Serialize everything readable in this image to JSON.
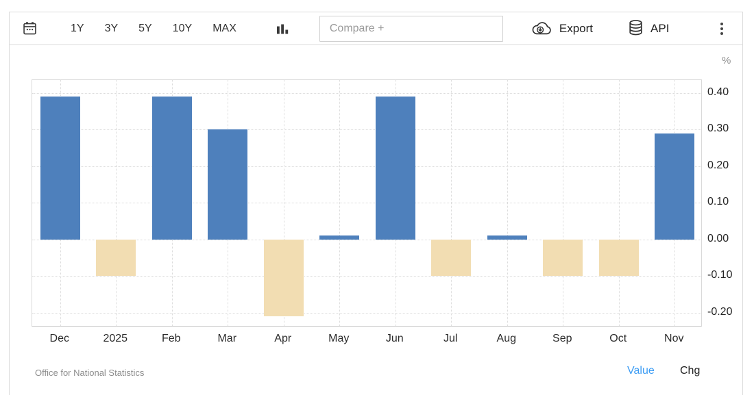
{
  "toolbar": {
    "periods": [
      "1Y",
      "3Y",
      "5Y",
      "10Y",
      "MAX"
    ],
    "compare_placeholder": "Compare +",
    "export_label": "Export",
    "api_label": "API",
    "icons": {
      "left": "calendar-icon",
      "chart_type": "bar-chart-icon",
      "export": "cloud-download-icon",
      "api": "database-icon",
      "more": "kebab-menu-icon"
    }
  },
  "chart_data": {
    "type": "bar",
    "unit": "%",
    "categories": [
      "Dec",
      "2025",
      "Feb",
      "Mar",
      "Apr",
      "May",
      "Jun",
      "Jul",
      "Aug",
      "Sep",
      "Oct",
      "Nov"
    ],
    "values": [
      0.39,
      -0.1,
      0.39,
      0.3,
      -0.21,
      0.01,
      0.39,
      -0.1,
      0.01,
      -0.1,
      -0.1,
      0.29
    ],
    "positive_color": "#4e80bc",
    "negative_color": "#f2ddb2",
    "ylim": [
      -0.24,
      0.435
    ],
    "yticks": [
      0.4,
      0.3,
      0.2,
      0.1,
      0,
      -0.1,
      -0.2
    ],
    "ytick_format": "0.00",
    "grid": "dotted, horizontal at y ticks and vertical at category centers",
    "legend": "none",
    "title": ""
  },
  "footer": {
    "source": "Office for National Statistics",
    "value_label": "Value",
    "chg_label": "Chg",
    "value_active_color": "#3b9cf4"
  }
}
